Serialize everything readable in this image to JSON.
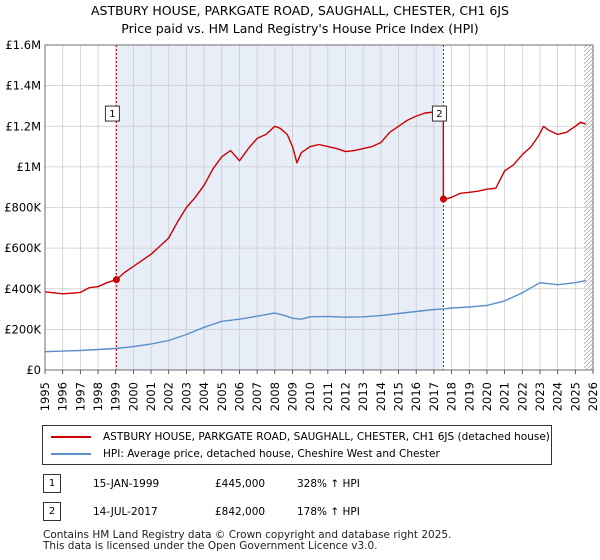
{
  "title": {
    "line1": "ASTBURY HOUSE, PARKGATE ROAD, SAUGHALL, CHESTER, CH1 6JS",
    "line2": "Price paid vs. HM Land Registry's House Price Index (HPI)"
  },
  "colors": {
    "property": "#cc0000",
    "hpi": "#5b8fc9",
    "shade": "#e8eef8",
    "grid": "#cccccc"
  },
  "chart_data": {
    "type": "line",
    "title": "ASTBURY HOUSE, PARKGATE ROAD, SAUGHALL, CHESTER, CH1 6JS",
    "subtitle": "Price paid vs. HM Land Registry's House Price Index (HPI)",
    "xlabel": "",
    "ylabel": "",
    "xlim": [
      1995,
      2026
    ],
    "ylim": [
      0,
      1600000
    ],
    "x_ticks": [
      "1995",
      "1996",
      "1997",
      "1998",
      "1999",
      "2000",
      "2001",
      "2002",
      "2003",
      "2004",
      "2005",
      "2006",
      "2007",
      "2008",
      "2009",
      "2010",
      "2011",
      "2012",
      "2013",
      "2014",
      "2015",
      "2016",
      "2017",
      "2018",
      "2019",
      "2020",
      "2021",
      "2022",
      "2023",
      "2024",
      "2025",
      "2026"
    ],
    "y_ticks": [
      {
        "value": 0,
        "label": "£0"
      },
      {
        "value": 200000,
        "label": "£200K"
      },
      {
        "value": 400000,
        "label": "£400K"
      },
      {
        "value": 600000,
        "label": "£600K"
      },
      {
        "value": 800000,
        "label": "£800K"
      },
      {
        "value": 1000000,
        "label": "£1M"
      },
      {
        "value": 1200000,
        "label": "£1.2M"
      },
      {
        "value": 1400000,
        "label": "£1.4M"
      },
      {
        "value": 1600000,
        "label": "£1.6M"
      }
    ],
    "grid": true,
    "series": [
      {
        "name": "ASTBURY HOUSE, PARKGATE ROAD, SAUGHALL, CHESTER, CH1 6JS (detached house)",
        "x": [
          1995.0,
          1995.5,
          1996.0,
          1996.5,
          1997.0,
          1997.5,
          1998.0,
          1998.5,
          1999.04,
          1999.5,
          2000.0,
          2000.5,
          2001.0,
          2001.5,
          2002.0,
          2002.5,
          2003.0,
          2003.5,
          2004.0,
          2004.5,
          2005.0,
          2005.5,
          2006.0,
          2006.5,
          2007.0,
          2007.5,
          2008.0,
          2008.3,
          2008.7,
          2009.0,
          2009.25,
          2009.5,
          2010.0,
          2010.5,
          2011.0,
          2011.5,
          2012.0,
          2012.5,
          2013.0,
          2013.5,
          2014.0,
          2014.5,
          2015.0,
          2015.5,
          2016.0,
          2016.5,
          2017.0,
          2017.4,
          2017.53,
          2017.54,
          2017.8,
          2018.0,
          2018.5,
          2019.0,
          2019.5,
          2020.0,
          2020.5,
          2021.0,
          2021.5,
          2022.0,
          2022.5,
          2022.9,
          2023.2,
          2023.5,
          2024.0,
          2024.5,
          2025.0,
          2025.3,
          2025.6
        ],
        "y": [
          385000,
          380000,
          375000,
          378000,
          382000,
          405000,
          410000,
          430000,
          445000,
          480000,
          510000,
          540000,
          570000,
          610000,
          650000,
          730000,
          800000,
          850000,
          910000,
          990000,
          1050000,
          1080000,
          1030000,
          1090000,
          1140000,
          1160000,
          1200000,
          1190000,
          1160000,
          1100000,
          1020000,
          1070000,
          1100000,
          1110000,
          1100000,
          1090000,
          1075000,
          1080000,
          1090000,
          1100000,
          1120000,
          1170000,
          1200000,
          1230000,
          1250000,
          1265000,
          1270000,
          1275000,
          1275000,
          842000,
          845000,
          850000,
          870000,
          875000,
          880000,
          890000,
          895000,
          980000,
          1010000,
          1060000,
          1100000,
          1150000,
          1200000,
          1180000,
          1160000,
          1170000,
          1200000,
          1220000,
          1210000
        ]
      },
      {
        "name": "HPI: Average price, detached house, Cheshire West and Chester",
        "x": [
          1995.0,
          1996.0,
          1997.0,
          1998.0,
          1999.0,
          2000.0,
          2001.0,
          2002.0,
          2003.0,
          2004.0,
          2005.0,
          2006.0,
          2007.0,
          2008.0,
          2008.5,
          2009.0,
          2009.5,
          2010.0,
          2011.0,
          2012.0,
          2013.0,
          2014.0,
          2015.0,
          2016.0,
          2017.0,
          2017.5,
          2018.0,
          2019.0,
          2020.0,
          2021.0,
          2022.0,
          2023.0,
          2024.0,
          2025.0,
          2025.6
        ],
        "y": [
          90000,
          93000,
          96000,
          101000,
          106000,
          115000,
          128000,
          145000,
          175000,
          210000,
          240000,
          250000,
          265000,
          280000,
          270000,
          255000,
          250000,
          262000,
          264000,
          260000,
          262000,
          268000,
          278000,
          288000,
          298000,
          300000,
          305000,
          310000,
          318000,
          340000,
          380000,
          430000,
          420000,
          430000,
          440000
        ]
      }
    ],
    "sales": [
      {
        "label": "1",
        "x": 1999.04,
        "y": 445000,
        "date": "15-JAN-1999",
        "price": "£445,000",
        "hpi_change": "328% ↑ HPI"
      },
      {
        "label": "2",
        "x": 2017.54,
        "y": 842000,
        "date": "14-JUL-2017",
        "price": "£842,000",
        "hpi_change": "178% ↑ HPI"
      }
    ],
    "shaded_region": {
      "from": 1999.04,
      "to": 2017.54
    },
    "future_hatch_from": 2025.5
  },
  "legend": {
    "property_label": "ASTBURY HOUSE, PARKGATE ROAD, SAUGHALL, CHESTER, CH1 6JS (detached house)",
    "hpi_label": "HPI: Average price, detached house, Cheshire West and Chester"
  },
  "footer": {
    "line1": "Contains HM Land Registry data © Crown copyright and database right 2025.",
    "line2": "This data is licensed under the Open Government Licence v3.0."
  }
}
